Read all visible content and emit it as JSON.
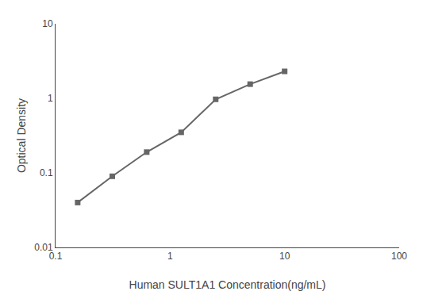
{
  "chart_data": {
    "type": "line",
    "x": [
      0.156,
      0.313,
      0.625,
      1.25,
      2.5,
      5.0,
      10.0
    ],
    "values": [
      0.04,
      0.09,
      0.19,
      0.35,
      0.97,
      1.55,
      2.3
    ],
    "xlabel": "Human SULT1A1 Concentration(ng/mL)",
    "ylabel": "Optical Density",
    "xlim": [
      0.1,
      100
    ],
    "ylim": [
      0.01,
      10
    ],
    "xticks": [
      0.1,
      1,
      10,
      100
    ],
    "yticks": [
      0.01,
      0.1,
      1,
      10
    ],
    "log": true,
    "grid": false,
    "color": "#666666",
    "marker": "square",
    "line_style": "solid"
  }
}
